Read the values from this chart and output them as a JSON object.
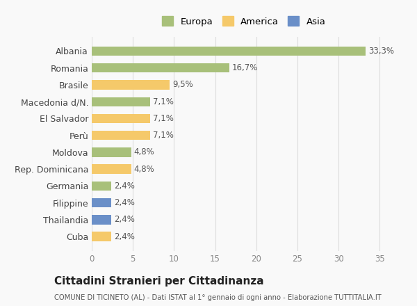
{
  "countries": [
    "Albania",
    "Romania",
    "Brasile",
    "Macedonia d/N.",
    "El Salvador",
    "Perù",
    "Moldova",
    "Rep. Dominicana",
    "Germania",
    "Filippine",
    "Thailandia",
    "Cuba"
  ],
  "values": [
    33.3,
    16.7,
    9.5,
    7.1,
    7.1,
    7.1,
    4.8,
    4.8,
    2.4,
    2.4,
    2.4,
    2.4
  ],
  "labels": [
    "33,3%",
    "16,7%",
    "9,5%",
    "7,1%",
    "7,1%",
    "7,1%",
    "4,8%",
    "4,8%",
    "2,4%",
    "2,4%",
    "2,4%",
    "2,4%"
  ],
  "continents": [
    "Europa",
    "Europa",
    "America",
    "Europa",
    "America",
    "America",
    "Europa",
    "America",
    "Europa",
    "Asia",
    "Asia",
    "America"
  ],
  "colors": {
    "Europa": "#a8c07a",
    "America": "#f5c96a",
    "Asia": "#6a8fc8"
  },
  "legend_items": [
    "Europa",
    "America",
    "Asia"
  ],
  "xlim": [
    0,
    37
  ],
  "xticks": [
    0,
    5,
    10,
    15,
    20,
    25,
    30,
    35
  ],
  "title": "Cittadini Stranieri per Cittadinanza",
  "subtitle": "COMUNE DI TICINETO (AL) - Dati ISTAT al 1° gennaio di ogni anno - Elaborazione TUTTITALIA.IT",
  "background_color": "#f9f9f9",
  "grid_color": "#dddddd",
  "bar_height": 0.55
}
